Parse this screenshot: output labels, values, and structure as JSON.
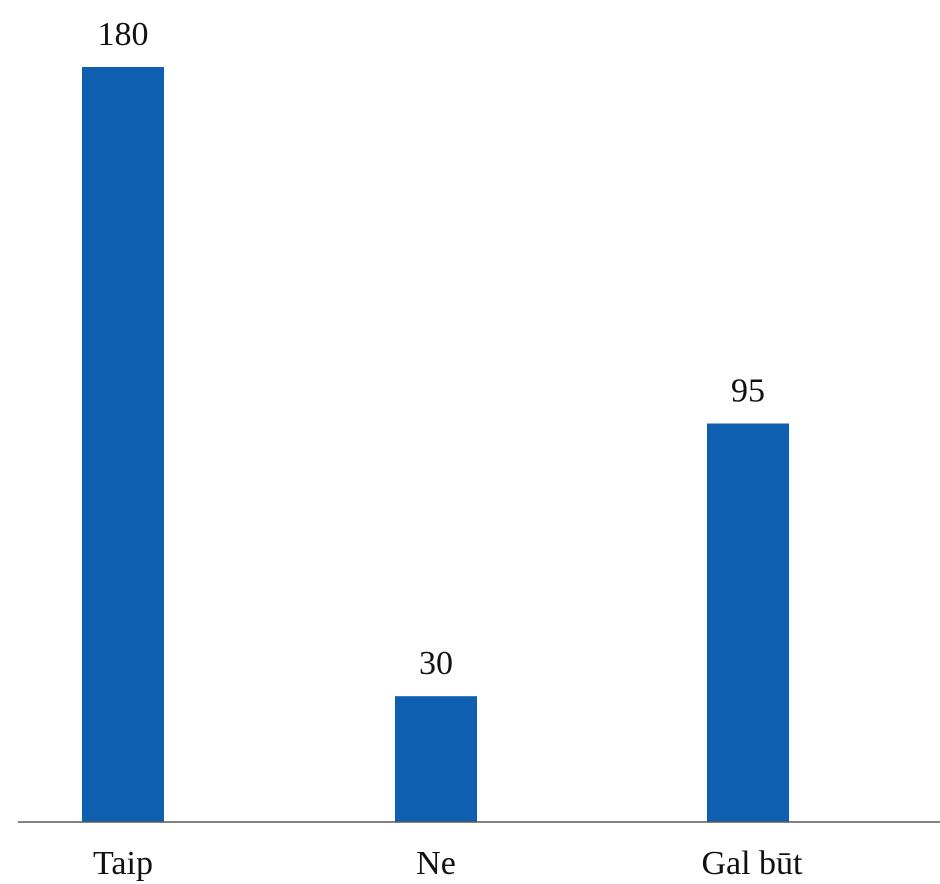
{
  "chart_data": {
    "type": "bar",
    "categories": [
      "Taip",
      "Ne",
      "Gal būt"
    ],
    "values": [
      180,
      30,
      95
    ],
    "data_labels": [
      "180",
      "30",
      "95"
    ],
    "title": "",
    "xlabel": "",
    "ylabel": "",
    "ylim": [
      0,
      180
    ],
    "grid": false,
    "legend": "none",
    "bar_color": "#0E5FAF"
  }
}
